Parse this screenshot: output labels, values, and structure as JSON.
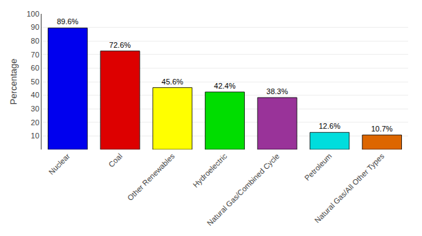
{
  "chart_data": {
    "type": "bar",
    "categories": [
      "Nuclear",
      "Coal",
      "Other Renewables",
      "Hydroelectric",
      "Natural Gas/Combined Cycle",
      "Petroleum",
      "Natural Gas/All Other Types"
    ],
    "values": [
      89.6,
      72.6,
      45.6,
      42.4,
      38.3,
      12.6,
      10.7
    ],
    "value_labels": [
      "89.6%",
      "72.6%",
      "45.6%",
      "42.4%",
      "38.3%",
      "12.6%",
      "10.7%"
    ],
    "data_labels": true,
    "colors": [
      "#0000EE",
      "#DD0000",
      "#FFFF00",
      "#00DD00",
      "#993399",
      "#00DDDD",
      "#DD6600"
    ],
    "ylabel": "Percentage",
    "ylim": [
      0,
      100
    ],
    "yticks": [
      10,
      20,
      30,
      40,
      50,
      60,
      70,
      80,
      90,
      100
    ],
    "grid": true
  }
}
